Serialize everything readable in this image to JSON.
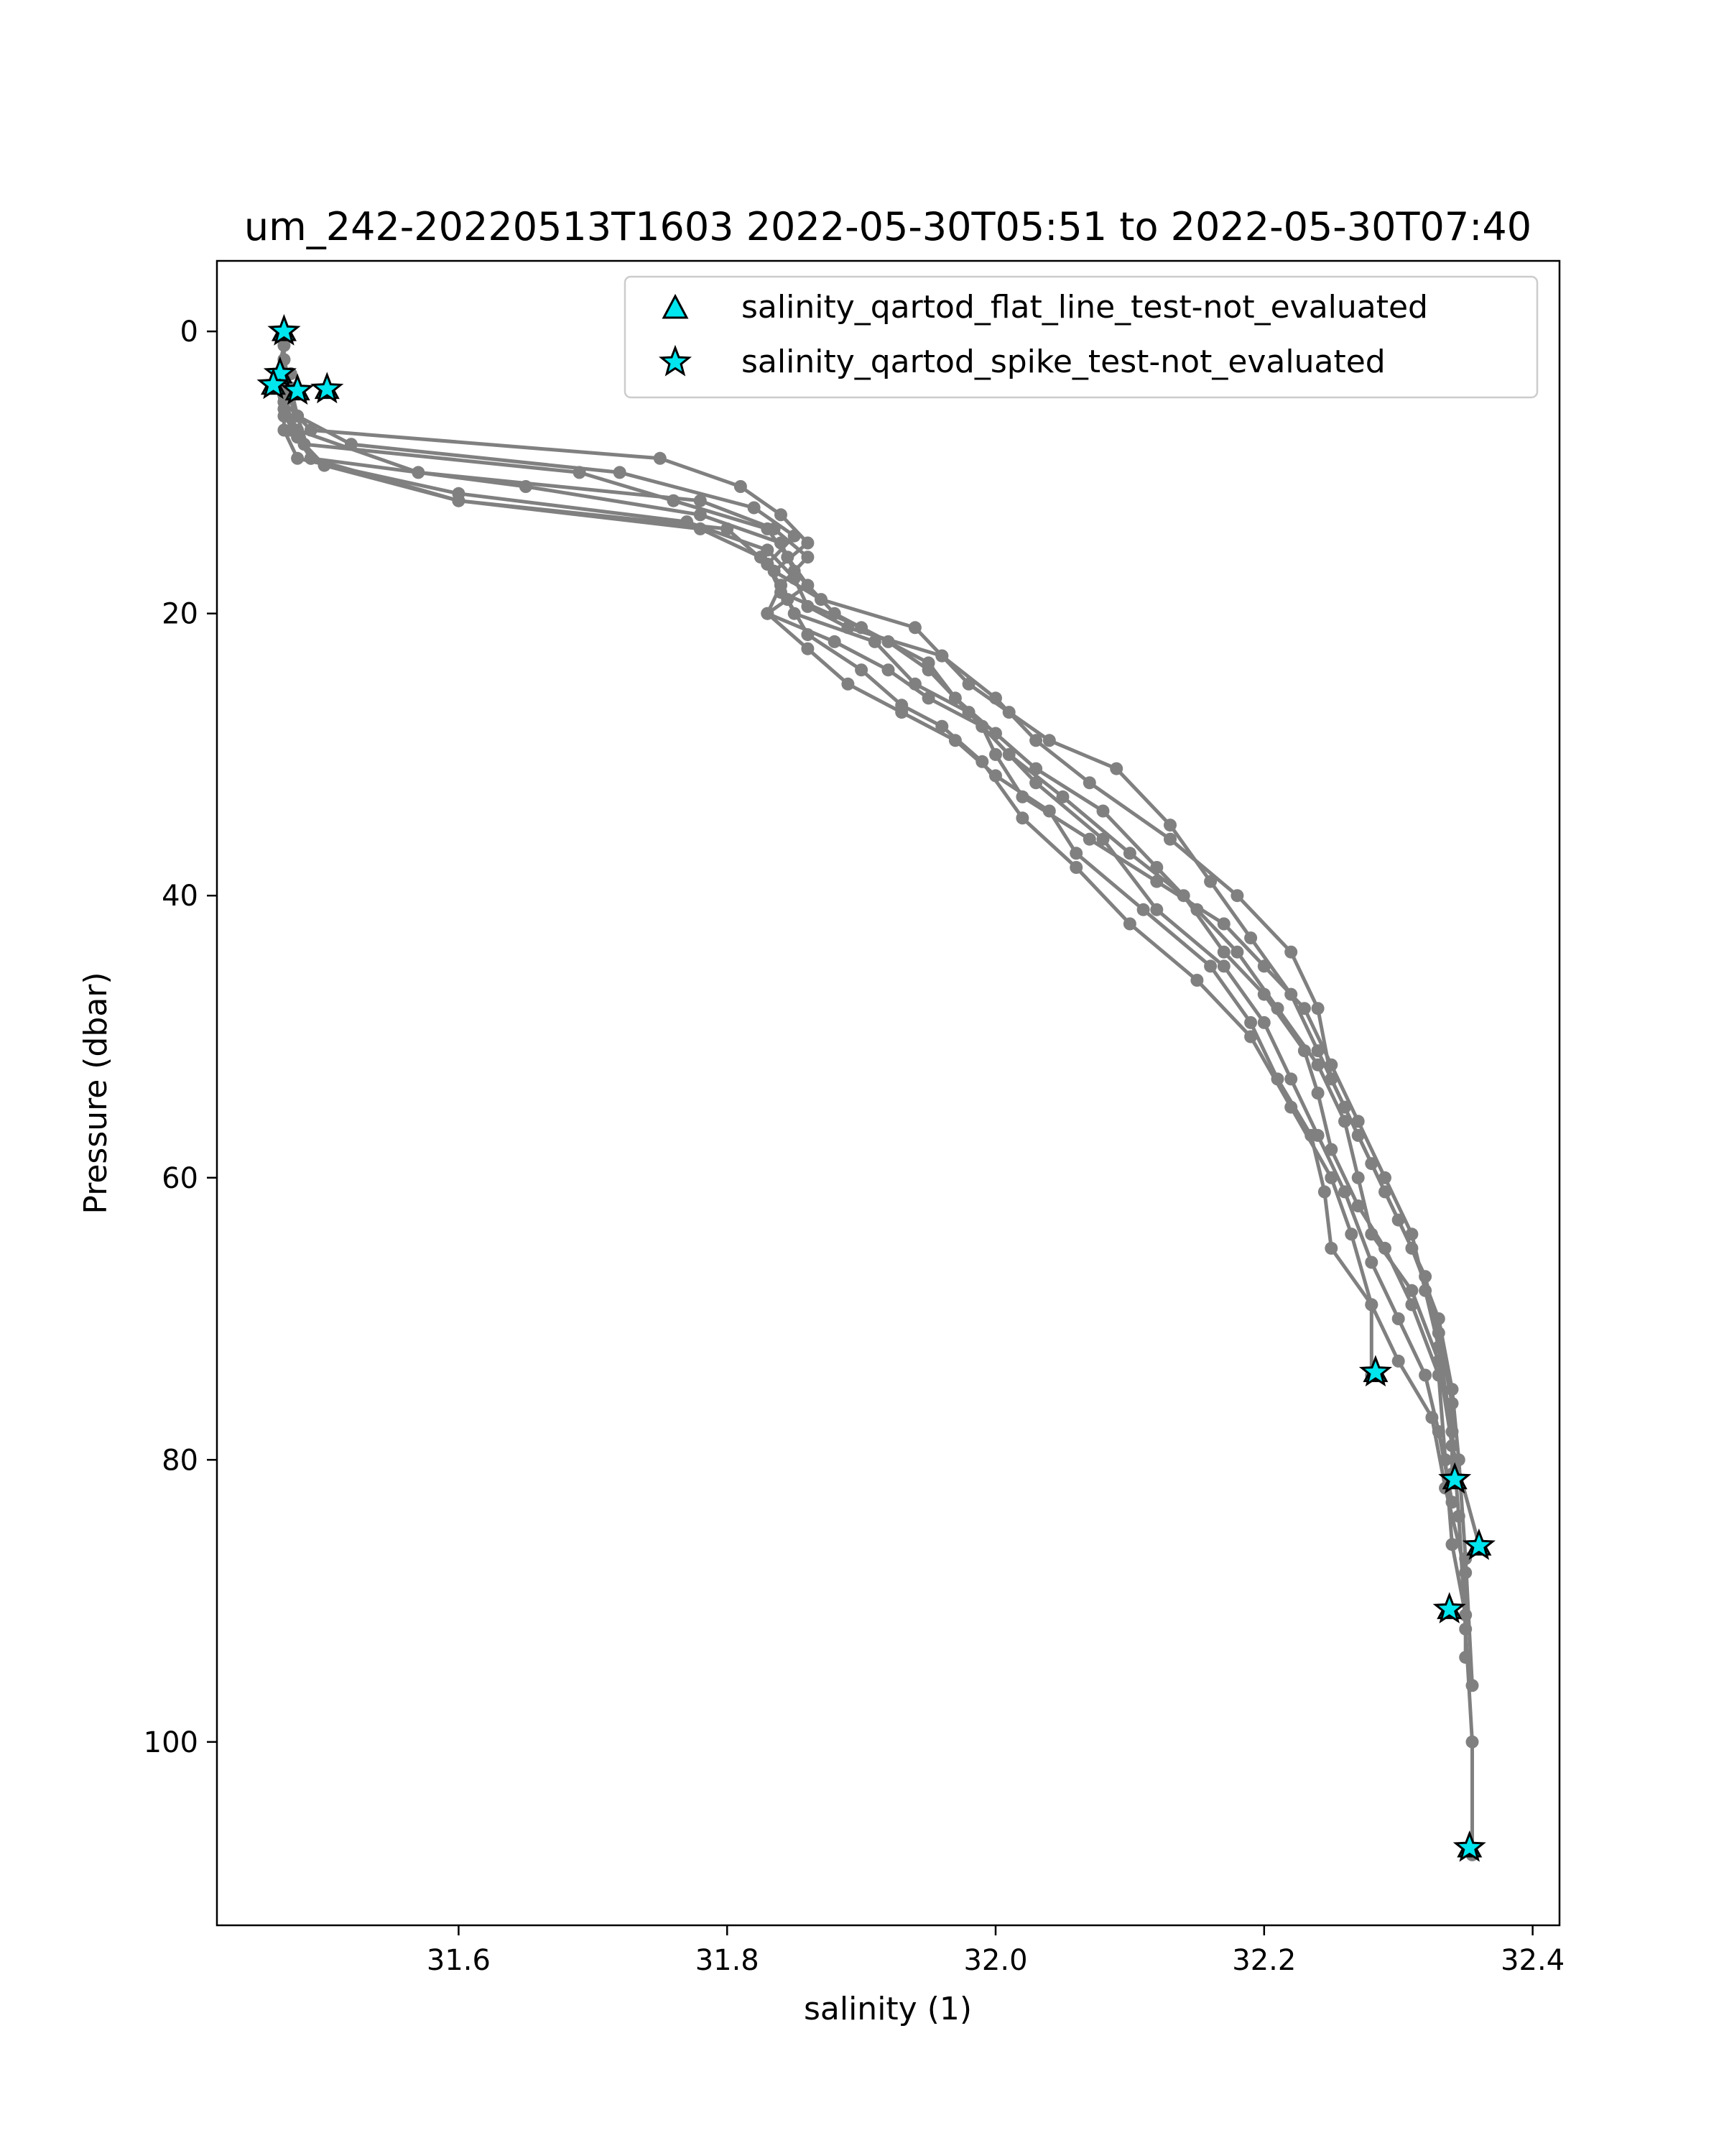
{
  "chart_data": {
    "type": "line",
    "title": "um_242-20220513T1603 2022-05-30T05:51 to 2022-05-30T07:40",
    "xlabel": "salinity (1)",
    "ylabel": "Pressure (dbar)",
    "xlim": [
      31.42,
      32.42
    ],
    "ylim": [
      113,
      -5
    ],
    "y_inverted": true,
    "x_ticks": [
      "31.6",
      "31.8",
      "32.0",
      "32.2",
      "32.4"
    ],
    "y_ticks": [
      "0",
      "20",
      "40",
      "60",
      "80",
      "100"
    ],
    "grid": false,
    "legend_position": "top-right",
    "legend": [
      {
        "label": "salinity_qartod_flat_line_test-not_evaluated",
        "marker": "triangle"
      },
      {
        "label": "salinity_qartod_spike_test-not_evaluated",
        "marker": "star"
      }
    ],
    "colors": {
      "profile": "#808080",
      "flag": "#00e5ee"
    },
    "series": [
      {
        "x": [
          31.47,
          31.47,
          31.465,
          31.47,
          31.485,
          31.69,
          31.76,
          31.83,
          31.845,
          31.86,
          31.83,
          31.88,
          31.92,
          31.95,
          31.99,
          32.0,
          32.02,
          32.07,
          32.12,
          32.17,
          32.2,
          32.23,
          32.25,
          32.27,
          32.29,
          32.31,
          32.32,
          32.33,
          32.34,
          32.345,
          32.35,
          32.355,
          32.355
        ],
        "y": [
          0,
          2,
          4,
          6,
          8,
          10,
          12,
          14,
          16,
          18,
          20,
          22,
          24,
          26,
          28,
          30,
          33,
          36,
          39,
          42,
          45,
          48,
          52,
          56,
          60,
          64,
          68,
          72,
          78,
          84,
          92,
          100,
          108
        ]
      },
      {
        "x": [
          31.47,
          31.465,
          31.47,
          31.49,
          31.75,
          31.81,
          31.84,
          31.86,
          31.835,
          31.87,
          31.94,
          31.96,
          31.98,
          32.01,
          32.04,
          32.09,
          32.13,
          32.16,
          32.19,
          32.22,
          32.24,
          32.26,
          32.28,
          32.3,
          32.32,
          32.33,
          32.34,
          32.34
        ],
        "y": [
          1,
          3,
          5,
          7,
          9,
          11,
          13,
          15,
          17,
          19,
          21,
          23,
          25,
          27,
          29,
          31,
          35,
          39,
          43,
          47,
          51,
          55,
          59,
          63,
          67,
          71,
          76,
          81
        ]
      },
      {
        "x": [
          31.47,
          31.475,
          31.48,
          31.52,
          31.72,
          31.82,
          31.85,
          31.83,
          31.84,
          31.9,
          31.95,
          31.97,
          32.0,
          32.03,
          32.08,
          32.12,
          32.15,
          32.18,
          32.21,
          32.24,
          32.26,
          32.27,
          32.28,
          32.31,
          32.33,
          32.34,
          32.36
        ],
        "y": [
          2,
          4,
          6,
          8,
          10,
          12.5,
          14.5,
          16.5,
          18.5,
          21,
          23.5,
          26,
          28.5,
          31,
          34,
          38,
          41,
          44,
          48,
          52,
          56,
          60,
          64,
          68,
          73,
          79,
          86
        ]
      },
      {
        "x": [
          31.475,
          31.47,
          31.48,
          31.57,
          31.78,
          31.835,
          31.86,
          31.84,
          31.85,
          31.91,
          31.94,
          31.98,
          32.01,
          32.05,
          32.1,
          32.14,
          32.17,
          32.2,
          32.23,
          32.24,
          32.25,
          32.27,
          32.29,
          32.31,
          32.33,
          32.335,
          32.34,
          32.35
        ],
        "y": [
          3,
          5,
          7,
          10,
          12,
          14,
          16,
          18,
          20,
          22,
          25,
          27,
          30,
          33,
          37,
          40,
          44,
          47,
          51,
          54,
          58,
          62,
          65,
          69,
          74,
          80,
          86,
          91
        ]
      },
      {
        "x": [
          31.47,
          31.48,
          31.49,
          31.6,
          31.78,
          31.825,
          31.84,
          31.83,
          31.86,
          31.89,
          31.93,
          31.97,
          32.0,
          32.04,
          32.06,
          32.11,
          32.16,
          32.19,
          32.21,
          32.235,
          32.245,
          32.25,
          32.28,
          32.3,
          32.325,
          32.335,
          32.35,
          32.35
        ],
        "y": [
          4,
          6,
          9,
          12,
          14,
          16,
          18,
          20,
          22.5,
          25,
          27,
          29,
          31.5,
          34,
          37,
          41,
          45,
          49,
          53,
          57,
          61,
          65,
          69,
          73,
          77,
          82,
          88,
          94
        ]
      },
      {
        "x": [
          31.47,
          31.475,
          31.5,
          31.6,
          31.8,
          31.83,
          31.845,
          31.86,
          31.9,
          31.93,
          31.96,
          31.99,
          32.02,
          32.06,
          32.1,
          32.15,
          32.19,
          32.22,
          32.25,
          32.265,
          32.28,
          32.28
        ],
        "y": [
          4.5,
          7,
          9.5,
          12,
          14,
          16.5,
          19,
          21.5,
          24,
          26.5,
          28,
          30.5,
          34.5,
          38,
          42,
          46,
          50,
          55,
          60,
          64,
          69,
          74
        ]
      },
      {
        "x": [
          31.47,
          31.47,
          31.48,
          31.6,
          31.77,
          31.83,
          31.85,
          31.86,
          31.89,
          31.96,
          32.0,
          32.03,
          32.07,
          32.13,
          32.18,
          32.22,
          32.24,
          32.25,
          32.27,
          32.29,
          32.31,
          32.33,
          32.34,
          32.345,
          32.35,
          32.355
        ],
        "y": [
          5,
          7,
          9,
          11.5,
          13.5,
          15.5,
          17.5,
          19.5,
          21,
          23,
          26,
          29,
          32,
          36,
          40,
          44,
          48,
          53,
          57,
          61,
          65,
          70,
          75,
          80,
          87,
          96
        ]
      },
      {
        "x": [
          31.47,
          31.48,
          31.49,
          31.65,
          31.78,
          31.84,
          31.85,
          31.88,
          31.92,
          31.95,
          31.99,
          32.03,
          32.08,
          32.12,
          32.17,
          32.2,
          32.22,
          32.24,
          32.26,
          32.28,
          32.3,
          32.32,
          32.33,
          32.34
        ],
        "y": [
          5.5,
          7.5,
          9,
          11,
          13,
          15,
          17,
          20,
          22,
          24,
          28,
          32,
          36,
          41,
          45,
          49,
          53,
          57,
          61,
          66,
          70,
          74,
          78,
          83
        ]
      }
    ],
    "flagged_points": [
      {
        "x": 31.47,
        "y": 0
      },
      {
        "x": 31.467,
        "y": 3
      },
      {
        "x": 31.462,
        "y": 3.8
      },
      {
        "x": 31.48,
        "y": 4.2
      },
      {
        "x": 31.502,
        "y": 4.1
      },
      {
        "x": 32.283,
        "y": 73.8
      },
      {
        "x": 32.342,
        "y": 81.4
      },
      {
        "x": 32.36,
        "y": 86.1
      },
      {
        "x": 32.338,
        "y": 90.6
      },
      {
        "x": 32.353,
        "y": 107.5
      }
    ]
  }
}
